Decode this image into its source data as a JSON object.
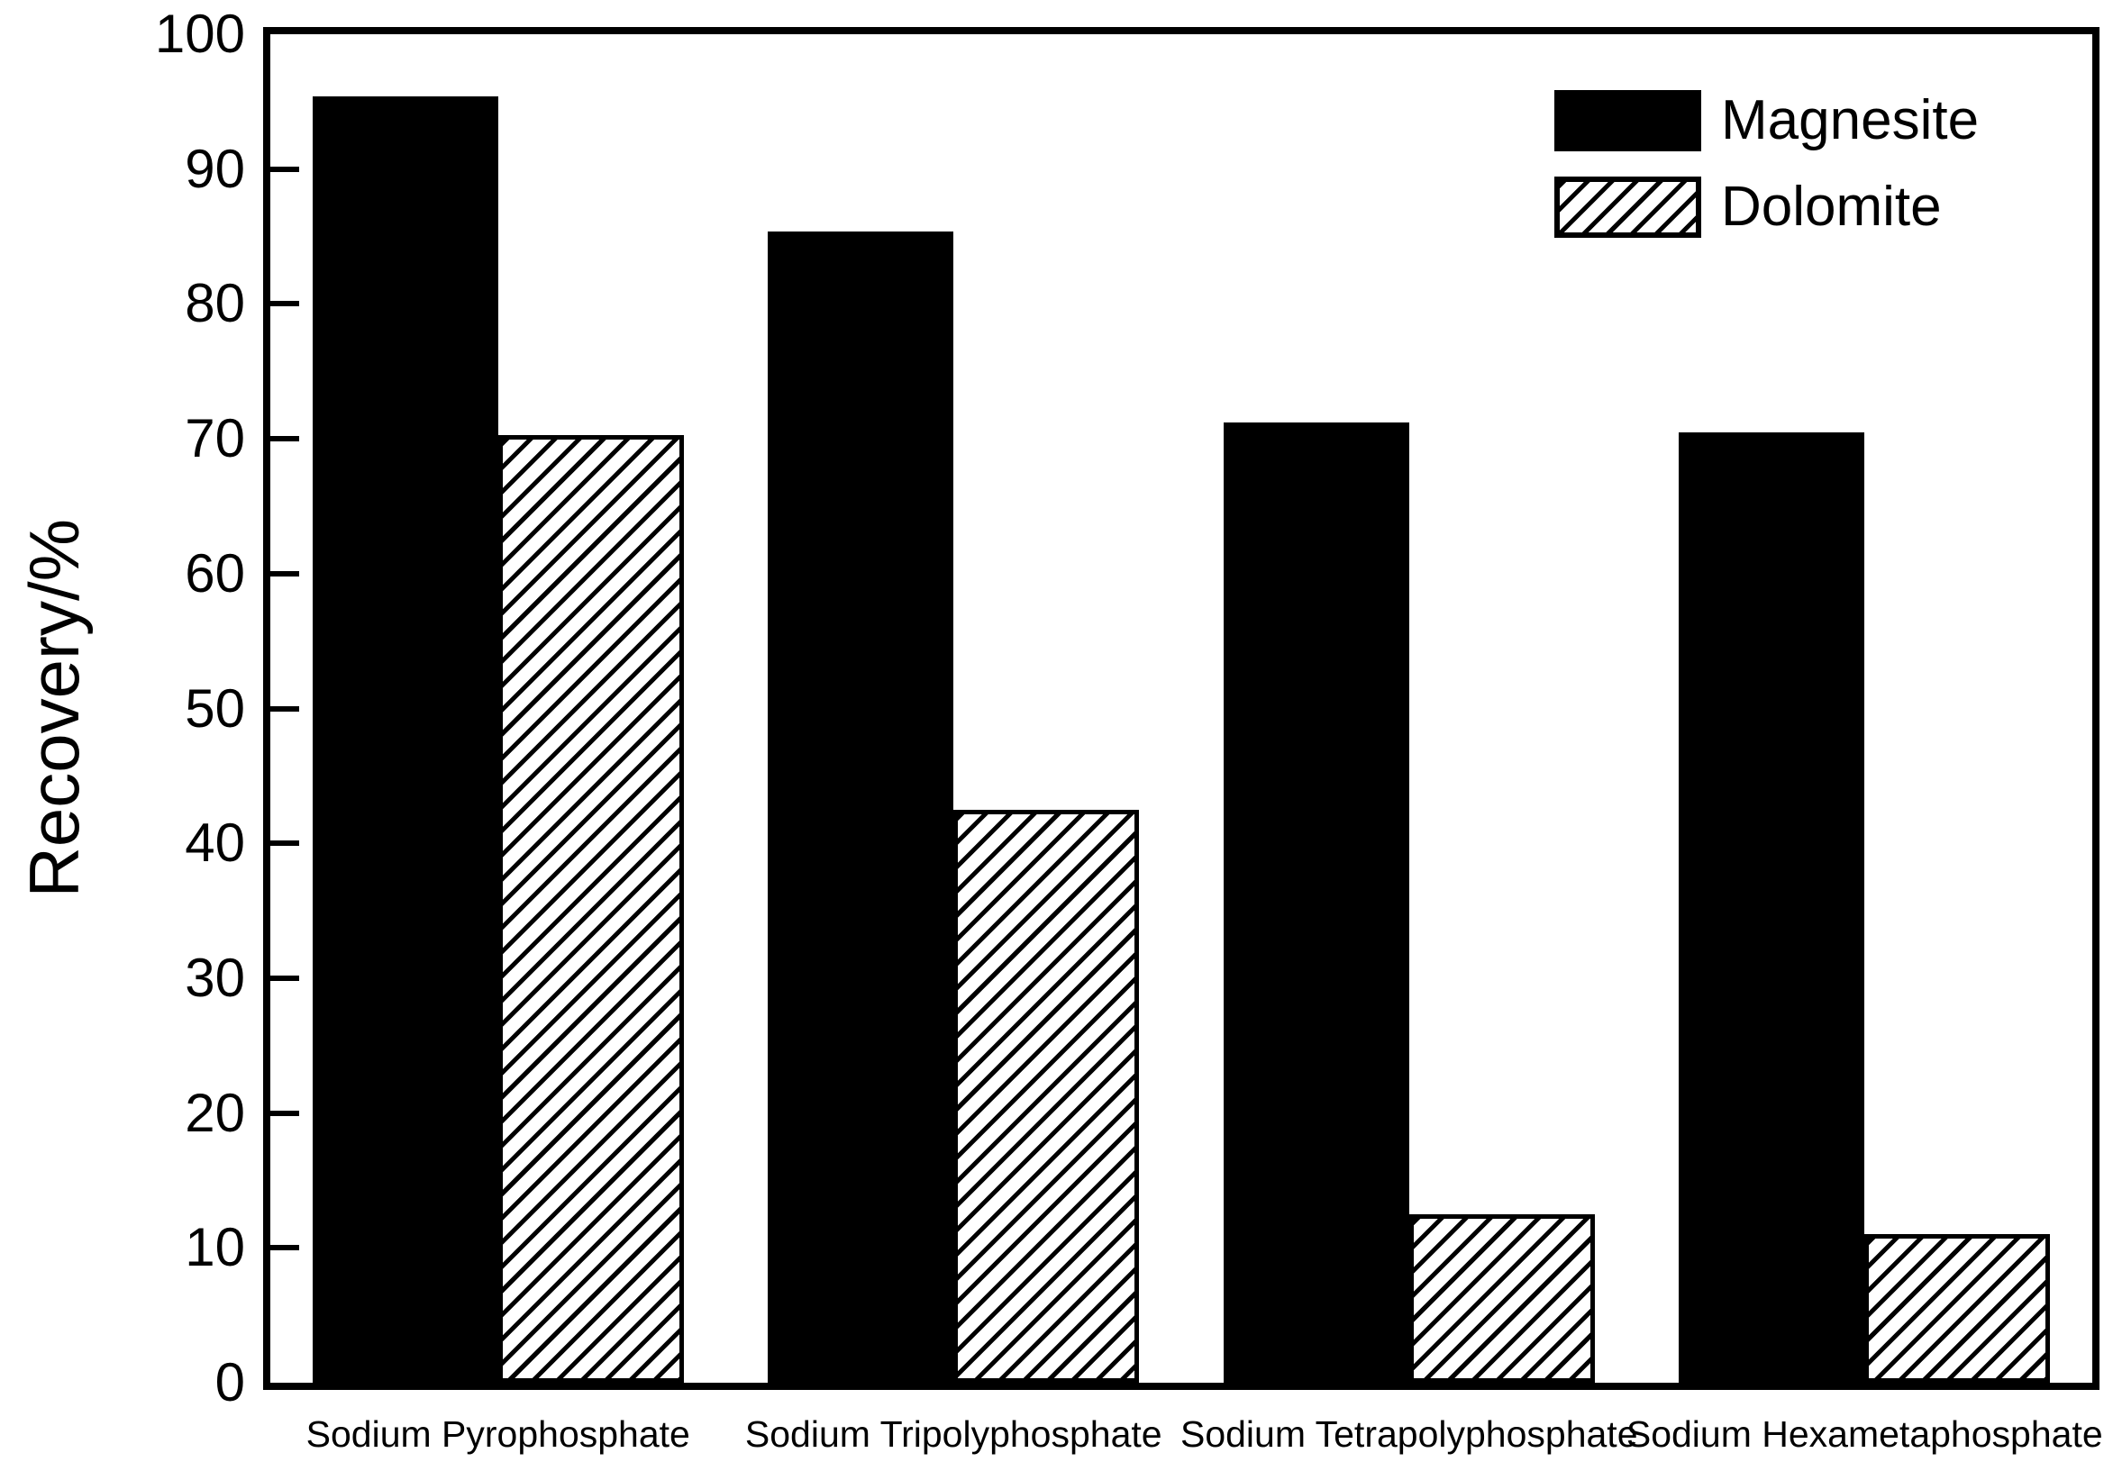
{
  "colors": {
    "foreground": "#000000",
    "background": "#ffffff"
  },
  "chart_data": {
    "type": "bar",
    "title": "",
    "xlabel": "",
    "ylabel": "Recovery/%",
    "ylim": [
      0,
      100
    ],
    "yticks": [
      0,
      10,
      20,
      30,
      40,
      50,
      60,
      70,
      80,
      90,
      100
    ],
    "grid": false,
    "legend_position": "top-right",
    "categories": [
      "Sodium Pyrophosphate",
      "Sodium Tripolyphosphate",
      "Sodium Tetrapolyphosphate",
      "Sodium Hexametaphosphate"
    ],
    "series": [
      {
        "name": "Magnesite",
        "pattern": "solid-black",
        "values": [
          95.4,
          85.4,
          71.2,
          70.5
        ]
      },
      {
        "name": "Dolomite",
        "pattern": "diagonal-hatch",
        "values": [
          70.3,
          42.5,
          12.5,
          11.0
        ]
      }
    ]
  }
}
